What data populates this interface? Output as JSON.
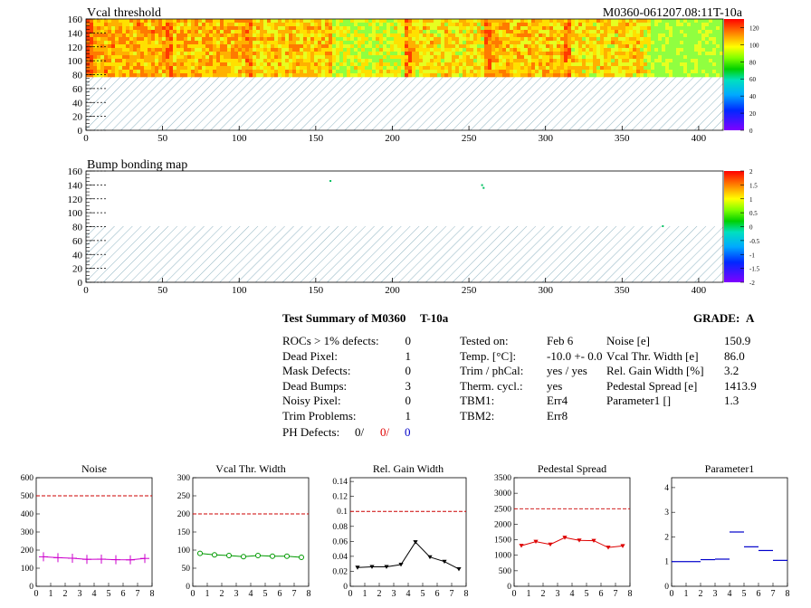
{
  "maps": {
    "vcal": {
      "title": "Vcal threshold",
      "module_tag": "M0360-061207.08:11T-10a",
      "x_ticks": [
        "0",
        "50",
        "100",
        "150",
        "200",
        "250",
        "300",
        "350",
        "400"
      ],
      "y_ticks": [
        "0",
        "20",
        "40",
        "60",
        "80",
        "100",
        "120",
        "140",
        "160"
      ],
      "palette_ticks": [
        "0",
        "20",
        "40",
        "60",
        "80",
        "100",
        "120"
      ],
      "x_range": [
        0,
        416
      ],
      "y_range": [
        0,
        160
      ],
      "palette_range": [
        0,
        130
      ],
      "filled_rows": [
        80,
        160
      ],
      "roc_means": [
        90,
        88,
        84,
        70,
        80,
        86,
        80,
        56
      ]
    },
    "bump": {
      "title": "Bump bonding map",
      "x_ticks": [
        "0",
        "50",
        "100",
        "150",
        "200",
        "250",
        "300",
        "350",
        "400"
      ],
      "y_ticks": [
        "0",
        "20",
        "40",
        "60",
        "80",
        "100",
        "120",
        "140",
        "160"
      ],
      "palette_ticks": [
        "-2",
        "-1.5",
        "-1",
        "-0.5",
        "0",
        "0.5",
        "1",
        "1.5",
        "2"
      ],
      "x_range": [
        0,
        416
      ],
      "y_range": [
        0,
        160
      ],
      "palette_range": [
        -2,
        2
      ],
      "points": [
        [
          159,
          147
        ],
        [
          258,
          141
        ],
        [
          259,
          137
        ],
        [
          376,
          82
        ]
      ]
    }
  },
  "summary": {
    "title": "Test Summary of M0360",
    "test_id": "T-10a",
    "grade_label": "GRADE:",
    "grade": "A",
    "left": [
      {
        "label": "ROCs > 1% defects:",
        "value": "0"
      },
      {
        "label": "Dead Pixel:",
        "value": "1"
      },
      {
        "label": "Mask Defects:",
        "value": "0"
      },
      {
        "label": "Dead Bumps:",
        "value": "3"
      },
      {
        "label": "Noisy Pixel:",
        "value": "0"
      },
      {
        "label": "Trim Problems:",
        "value": "1"
      }
    ],
    "ph_defects": {
      "label": "PH Defects:",
      "v1": "0/",
      "v2": "0/",
      "v3": "0"
    },
    "middle": [
      {
        "label": "Tested on:",
        "value": "Feb 6"
      },
      {
        "label": "Temp. [°C]:",
        "value": "-10.0 +- 0.0"
      },
      {
        "label": "Trim / phCal:",
        "value": "yes / yes"
      },
      {
        "label": "Therm. cycl.:",
        "value": "yes"
      },
      {
        "label": "TBM1:",
        "value": "Err4"
      },
      {
        "label": "TBM2:",
        "value": "Err8"
      }
    ],
    "right": [
      {
        "label": "Noise [e]",
        "value": "150.9"
      },
      {
        "label": "Vcal Thr. Width [e]",
        "value": "86.0"
      },
      {
        "label": "Rel. Gain Width [%]",
        "value": "3.2"
      },
      {
        "label": "Pedestal Spread [e]",
        "value": "1413.9"
      },
      {
        "label": "Parameter1 []",
        "value": "1.3"
      }
    ]
  },
  "chart_data": [
    {
      "type": "line",
      "title": "Noise",
      "x": [
        0.5,
        1.5,
        2.5,
        3.5,
        4.5,
        5.5,
        6.5,
        7.5
      ],
      "values": [
        163,
        158,
        155,
        149,
        150,
        147,
        146,
        154
      ],
      "ylim": [
        0,
        600
      ],
      "y_ticks": [
        "0",
        "100",
        "200",
        "300",
        "400",
        "500",
        "600"
      ],
      "x_ticks": [
        "0",
        "1",
        "2",
        "3",
        "4",
        "5",
        "6",
        "7",
        "8"
      ],
      "threshold": 500,
      "color": "#cc00cc",
      "marker": "bar"
    },
    {
      "type": "line",
      "title": "Vcal Thr. Width",
      "x": [
        0.5,
        1.5,
        2.5,
        3.5,
        4.5,
        5.5,
        6.5,
        7.5
      ],
      "values": [
        91,
        87,
        85,
        82,
        85,
        83,
        83,
        80
      ],
      "ylim": [
        0,
        300
      ],
      "y_ticks": [
        "0",
        "50",
        "100",
        "150",
        "200",
        "250",
        "300"
      ],
      "x_ticks": [
        "0",
        "1",
        "2",
        "3",
        "4",
        "5",
        "6",
        "7",
        "8"
      ],
      "threshold": 200,
      "color": "#009900",
      "marker": "circle"
    },
    {
      "type": "line",
      "title": "Rel. Gain Width",
      "x": [
        0.5,
        1.5,
        2.5,
        3.5,
        4.5,
        5.5,
        6.5,
        7.5
      ],
      "values": [
        0.025,
        0.026,
        0.026,
        0.029,
        0.059,
        0.039,
        0.033,
        0.023
      ],
      "ylim": [
        0,
        0.145
      ],
      "y_ticks": [
        "0",
        "0.02",
        "0.04",
        "0.06",
        "0.08",
        "0.1",
        "0.12",
        "0.14"
      ],
      "y_tick_values": [
        0,
        0.02,
        0.04,
        0.06,
        0.08,
        0.1,
        0.12,
        0.14
      ],
      "x_ticks": [
        "0",
        "1",
        "2",
        "3",
        "4",
        "5",
        "6",
        "7",
        "8"
      ],
      "threshold": 0.1,
      "color": "#000000",
      "marker": "triangle"
    },
    {
      "type": "line",
      "title": "Pedestal Spread",
      "x": [
        0.5,
        1.5,
        2.5,
        3.5,
        4.5,
        5.5,
        6.5,
        7.5
      ],
      "values": [
        1310,
        1440,
        1350,
        1570,
        1480,
        1470,
        1250,
        1300
      ],
      "ylim": [
        0,
        3500
      ],
      "y_ticks": [
        "0",
        "500",
        "1000",
        "1500",
        "2000",
        "2500",
        "3000",
        "3500"
      ],
      "x_ticks": [
        "0",
        "1",
        "2",
        "3",
        "4",
        "5",
        "6",
        "7",
        "8"
      ],
      "threshold": 2500,
      "color": "#dd0000",
      "marker": "triangle"
    },
    {
      "type": "bar",
      "title": "Parameter1",
      "x": [
        0.5,
        1.5,
        2.5,
        3.5,
        4.5,
        5.5,
        6.5,
        7.5
      ],
      "values": [
        1.0,
        1.0,
        1.08,
        1.1,
        2.2,
        1.6,
        1.45,
        1.05
      ],
      "ylim": [
        0,
        4.4
      ],
      "y_ticks": [
        "0",
        "1",
        "2",
        "3",
        "4"
      ],
      "y_tick_values": [
        0,
        1,
        2,
        3,
        4
      ],
      "x_ticks": [
        "0",
        "1",
        "2",
        "3",
        "4",
        "5",
        "6",
        "7",
        "8"
      ],
      "color": "#0000cc",
      "marker": "hbar"
    }
  ],
  "colors": {
    "axis": "#000000",
    "hatch": "#7fa9b8",
    "threshold": "#cc0000"
  }
}
